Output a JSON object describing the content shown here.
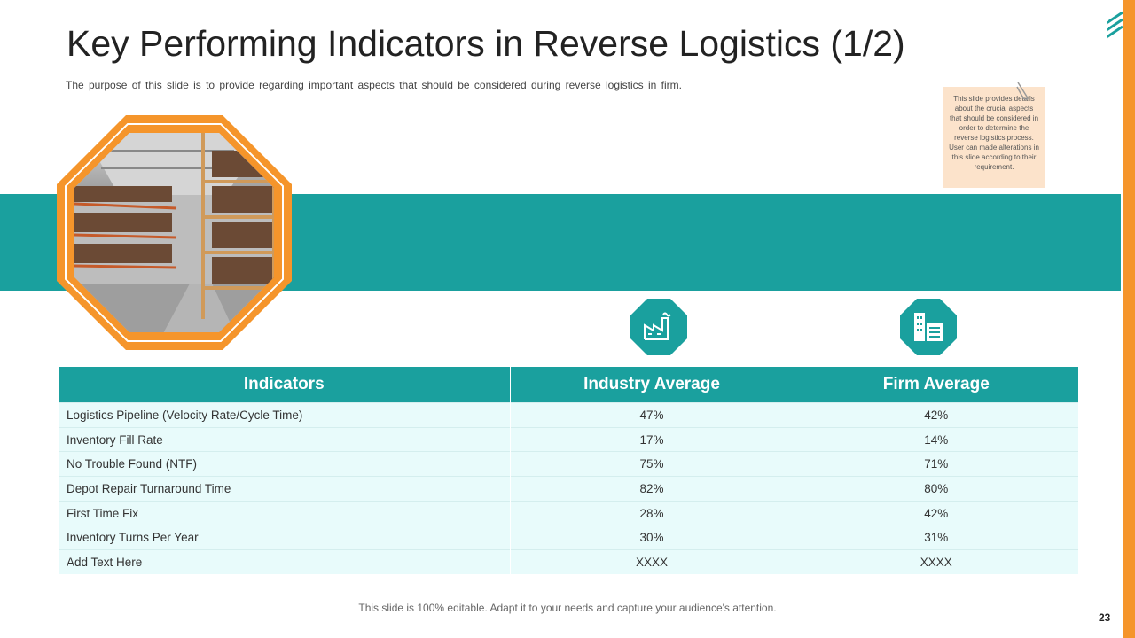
{
  "slide": {
    "title": "Key Performing Indicators in Reverse Logistics (1/2)",
    "subtitle": "The purpose of this slide is to provide regarding important aspects that should be considered during reverse logistics in firm.",
    "note": "This slide provides details about the crucial aspects that should be considered in order to determine the reverse logistics process. User can made alterations in this slide according to their requirement.",
    "footer": "This slide is 100% editable. Adapt it to your needs and capture your audience's attention.",
    "page_number": "23"
  },
  "colors": {
    "teal": "#1AA09E",
    "orange": "#F5952B",
    "row_bg": "#E8FBFB",
    "note_bg": "#FCE3CB"
  },
  "icons": {
    "industry": "factory-icon",
    "firm": "office-building-icon",
    "image": "warehouse-photo"
  },
  "table": {
    "headers": [
      "Indicators",
      "Industry Average",
      "Firm Average"
    ],
    "rows": [
      [
        "Logistics Pipeline (Velocity Rate/Cycle Time)",
        "47%",
        "42%"
      ],
      [
        "Inventory Fill Rate",
        "17%",
        "14%"
      ],
      [
        "No Trouble Found (NTF)",
        "75%",
        "71%"
      ],
      [
        "Depot Repair Turnaround Time",
        "82%",
        "80%"
      ],
      [
        "First Time Fix",
        "28%",
        "42%"
      ],
      [
        "Inventory Turns Per Year",
        "30%",
        "31%"
      ],
      [
        "Add Text Here",
        "XXXX",
        "XXXX"
      ]
    ]
  }
}
